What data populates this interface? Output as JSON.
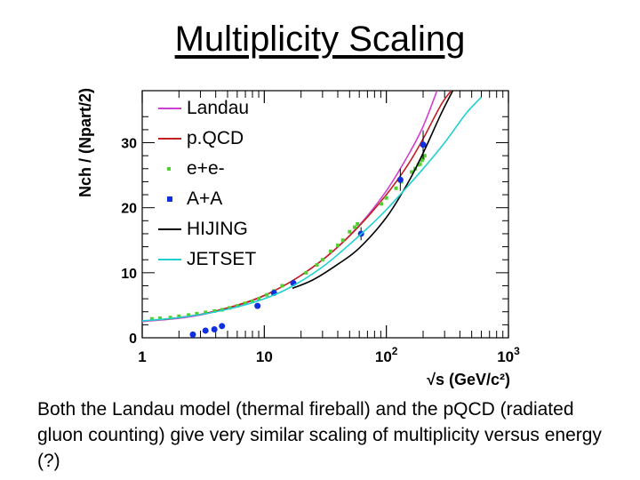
{
  "slide": {
    "title": "Multiplicity Scaling",
    "caption": "Both the Landau model (thermal fireball) and the pQCD (radiated gluon counting) give very similar scaling of multiplicity versus energy (?)"
  },
  "chart_data": {
    "type": "scatter",
    "title": "",
    "xlabel": "√s (GeV/c²)",
    "ylabel": "Nch / (Npart/2)",
    "xscale": "log",
    "xlim": [
      1,
      1000
    ],
    "ylim": [
      0,
      38
    ],
    "x_ticks": [
      {
        "value": 1,
        "label": "1"
      },
      {
        "value": 10,
        "label": "10"
      },
      {
        "value": 100,
        "label": "10",
        "exp": "2"
      },
      {
        "value": 1000,
        "label": "10",
        "exp": "3"
      }
    ],
    "y_ticks": [
      {
        "value": 0,
        "label": "0"
      },
      {
        "value": 10,
        "label": "10"
      },
      {
        "value": 20,
        "label": "20"
      },
      {
        "value": 30,
        "label": "30"
      }
    ],
    "grid": false,
    "legend_position": "top-left",
    "series": [
      {
        "name": "Landau",
        "kind": "line",
        "color": "#d040d0",
        "x": [
          1,
          2,
          3,
          5,
          8,
          12,
          20,
          35,
          60,
          100,
          150,
          200,
          260
        ],
        "y": [
          2.5,
          3.0,
          3.5,
          4.5,
          5.7,
          7.2,
          9.6,
          13.0,
          17.3,
          22.6,
          28.0,
          32.5,
          38.0
        ]
      },
      {
        "name": "p.QCD",
        "kind": "line",
        "color": "#c02020",
        "x": [
          1.5,
          3,
          5,
          8,
          12,
          20,
          35,
          60,
          100,
          150,
          200,
          280,
          340
        ],
        "y": [
          2.8,
          3.6,
          4.6,
          5.8,
          7.2,
          9.6,
          13.0,
          17.2,
          22.0,
          26.6,
          30.6,
          35.8,
          38.0
        ]
      },
      {
        "name": "e+e-",
        "kind": "markers",
        "color": "#50d030",
        "x": [
          1.2,
          1.4,
          1.7,
          2.0,
          2.4,
          2.8,
          3.3,
          3.9,
          4.5,
          5.2,
          6.0,
          7.0,
          8.0,
          9.0,
          10.5,
          12,
          14,
          22,
          27,
          30,
          35,
          40,
          44,
          50,
          55,
          58,
          91,
          100,
          120,
          133,
          161,
          172,
          183,
          189,
          196,
          200,
          206
        ],
        "y": [
          2.9,
          3.0,
          3.1,
          3.3,
          3.5,
          3.7,
          3.9,
          4.1,
          4.3,
          4.6,
          4.9,
          5.3,
          5.6,
          6.0,
          6.6,
          7.2,
          8.0,
          10.0,
          11.2,
          12.0,
          13.3,
          14.2,
          15.0,
          16.3,
          17.0,
          17.5,
          20.6,
          21.5,
          23.0,
          24.0,
          25.5,
          26.0,
          26.6,
          26.7,
          27.3,
          27.6,
          28.0
        ]
      },
      {
        "name": "A+A",
        "kind": "markers",
        "color": "#1030e0",
        "x": [
          2.6,
          3.3,
          3.9,
          4.5,
          8.8,
          12,
          17.3,
          62,
          130,
          200
        ],
        "y": [
          0.5,
          1.1,
          1.3,
          1.8,
          4.9,
          6.9,
          8.4,
          16.0,
          24.3,
          29.7
        ],
        "err": [
          0.1,
          0.1,
          0.1,
          0.1,
          0.3,
          0.4,
          0.5,
          1.0,
          1.7,
          2.2
        ]
      },
      {
        "name": "HIJING",
        "kind": "line",
        "color": "#000000",
        "x": [
          17,
          25,
          40,
          60,
          100,
          150,
          200,
          280,
          350
        ],
        "y": [
          7.6,
          8.9,
          11.3,
          13.8,
          18.5,
          23.8,
          28.4,
          34.4,
          38.0
        ]
      },
      {
        "name": "JETSET",
        "kind": "line",
        "color": "#20d0d0",
        "x": [
          1,
          2,
          4,
          8,
          15,
          30,
          60,
          100,
          200,
          300,
          450,
          600
        ],
        "y": [
          2.6,
          3.1,
          4.0,
          5.4,
          7.4,
          10.9,
          15.7,
          19.7,
          26.0,
          30.0,
          34.5,
          37.0
        ]
      }
    ]
  }
}
